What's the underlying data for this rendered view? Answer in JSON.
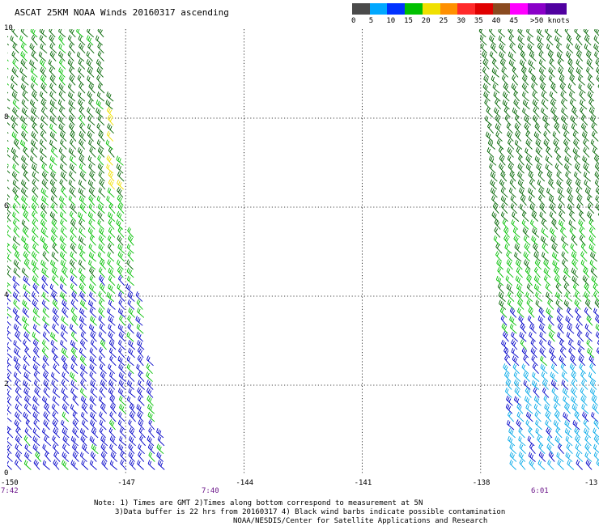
{
  "title": "ASCAT 25KM NOAA Winds 20160317 ascending",
  "legend": {
    "unit_label": ">50 knots",
    "bins": [
      {
        "label": "0",
        "color": "#4a4a4a"
      },
      {
        "label": "5",
        "color": "#00a8ff"
      },
      {
        "label": "10",
        "color": "#0032ff"
      },
      {
        "label": "15",
        "color": "#00c000"
      },
      {
        "label": "20",
        "color": "#f0e000"
      },
      {
        "label": "25",
        "color": "#ff9000"
      },
      {
        "label": "30",
        "color": "#ff2a2a"
      },
      {
        "label": "35",
        "color": "#e00000"
      },
      {
        "label": "40",
        "color": "#8a4a20"
      },
      {
        "label": "45",
        "color": "#ff00ff"
      },
      {
        "label": "",
        "color": "#8a00c8"
      },
      {
        "label": "",
        "color": "#5000a0"
      }
    ]
  },
  "map": {
    "lon_range": [
      -150,
      -135
    ],
    "lat_range": [
      0,
      10
    ],
    "grid": "dotted",
    "lon_ticks": [
      "-150",
      "-147",
      "-144",
      "-141",
      "-138",
      "-13"
    ],
    "lat_ticks": [
      "10",
      "8",
      "6",
      "4",
      "2",
      "0"
    ],
    "swath_times": [
      "7:42",
      "7:40",
      "6:01"
    ],
    "barb_colors": {
      "dark_green": "#006400",
      "green": "#00c000",
      "blue": "#0000c8",
      "light_blue": "#00a8e8",
      "yellow": "#f0e000"
    }
  },
  "notes": {
    "line1": "Note: 1) Times are GMT 2)Times along bottom correspond to measurement at 5N",
    "line2": "3)Data buffer is 22 hrs from 20160317 4) Black wind barbs indicate possible contamination",
    "line3": "NOAA/NESDIS/Center for Satellite Applications and Research"
  }
}
